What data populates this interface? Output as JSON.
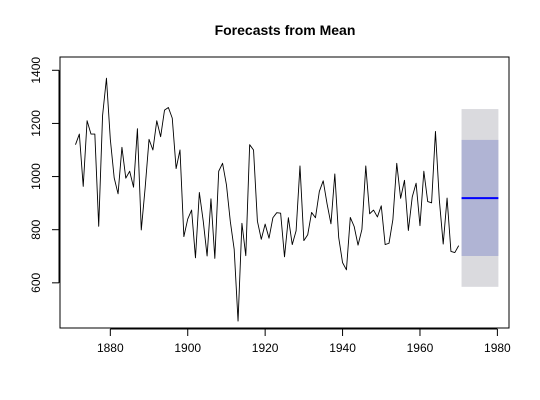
{
  "chart_data": {
    "type": "line",
    "title": "Forecasts from Mean",
    "xlabel": "",
    "ylabel": "",
    "xlim": [
      1867,
      1983
    ],
    "ylim": [
      430,
      1450
    ],
    "xticks": [
      1880,
      1900,
      1920,
      1940,
      1960,
      1980
    ],
    "yticks": [
      600,
      800,
      1000,
      1200,
      1400
    ],
    "grid": false,
    "colors": {
      "series": "#000000",
      "forecast": "#0000ff",
      "pi80": "#b0b4d4",
      "pi95": "#dadade",
      "axis": "#000000"
    },
    "series": [
      {
        "x": [
          1871,
          1872,
          1873,
          1874,
          1875,
          1876,
          1877,
          1878,
          1879,
          1880,
          1881,
          1882,
          1883,
          1884,
          1885,
          1886,
          1887,
          1888,
          1889,
          1890,
          1891,
          1892,
          1893,
          1894,
          1895,
          1896,
          1897,
          1898,
          1899,
          1900,
          1901,
          1902,
          1903,
          1904,
          1905,
          1906,
          1907,
          1908,
          1909,
          1910,
          1911,
          1912,
          1913,
          1914,
          1915,
          1916,
          1917,
          1918,
          1919,
          1920,
          1921,
          1922,
          1923,
          1924,
          1925,
          1926,
          1927,
          1928,
          1929,
          1930,
          1931,
          1932,
          1933,
          1934,
          1935,
          1936,
          1937,
          1938,
          1939,
          1940,
          1941,
          1942,
          1943,
          1944,
          1945,
          1946,
          1947,
          1948,
          1949,
          1950,
          1951,
          1952,
          1953,
          1954,
          1955,
          1956,
          1957,
          1958,
          1959,
          1960,
          1961,
          1962,
          1963,
          1964,
          1965,
          1966,
          1967,
          1968,
          1969,
          1970
        ],
        "y": [
          1120,
          1160,
          963,
          1210,
          1160,
          1160,
          813,
          1230,
          1370,
          1140,
          995,
          935,
          1110,
          994,
          1020,
          960,
          1180,
          799,
          958,
          1140,
          1100,
          1210,
          1150,
          1250,
          1260,
          1220,
          1030,
          1100,
          774,
          840,
          874,
          694,
          940,
          833,
          701,
          916,
          692,
          1020,
          1050,
          969,
          831,
          726,
          456,
          824,
          702,
          1120,
          1100,
          832,
          764,
          821,
          768,
          845,
          864,
          862,
          698,
          845,
          744,
          796,
          1040,
          759,
          781,
          865,
          845,
          944,
          984,
          897,
          822,
          1010,
          771,
          676,
          649,
          846,
          812,
          742,
          801,
          1040,
          860,
          874,
          848,
          890,
          744,
          749,
          838,
          1050,
          918,
          986,
          797,
          923,
          975,
          815,
          1020,
          906,
          901,
          1170,
          912,
          746,
          919,
          718,
          714,
          740
        ]
      }
    ],
    "forecast": {
      "x_start": 1971,
      "x_end": 1980,
      "mean": 919,
      "pi80": [
        701,
        1138
      ],
      "pi95": [
        585,
        1254
      ]
    }
  }
}
